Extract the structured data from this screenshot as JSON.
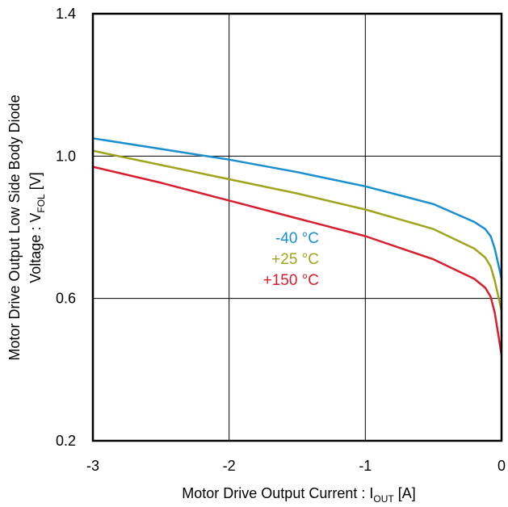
{
  "chart_data": {
    "type": "line",
    "xlabel": {
      "main": "Motor Drive Output Current : I",
      "sub": "OUT",
      "unit": " [A]"
    },
    "ylabel": {
      "line1": "Motor Drive Output Low Side Body Diode",
      "line2_main": "Voltage : V",
      "line2_sub": "FOL",
      "line2_unit": " [V]"
    },
    "xlim": [
      -3,
      0
    ],
    "ylim": [
      0.2,
      1.4
    ],
    "x_ticks": [
      {
        "value": -3,
        "label": "-3"
      },
      {
        "value": -2,
        "label": "-2"
      },
      {
        "value": -1,
        "label": "-1"
      },
      {
        "value": 0,
        "label": "0"
      }
    ],
    "y_ticks": [
      {
        "value": 0.2,
        "label": "0.2"
      },
      {
        "value": 0.6,
        "label": "0.6"
      },
      {
        "value": 1.0,
        "label": "1.0"
      },
      {
        "value": 1.4,
        "label": "1.4"
      }
    ],
    "grid": true,
    "series": [
      {
        "name": "-40 °C",
        "color": "#1a8fd0",
        "x": [
          -3.0,
          -2.5,
          -2.0,
          -1.5,
          -1.0,
          -0.5,
          -0.2,
          -0.12,
          -0.08,
          -0.05,
          -0.02,
          0.0
        ],
        "y": [
          1.05,
          1.02,
          0.99,
          0.955,
          0.915,
          0.865,
          0.815,
          0.795,
          0.775,
          0.74,
          0.69,
          0.655
        ]
      },
      {
        "name": "+25 °C",
        "color": "#9ea51b",
        "x": [
          -3.0,
          -2.5,
          -2.0,
          -1.5,
          -1.0,
          -0.5,
          -0.2,
          -0.12,
          -0.08,
          -0.05,
          -0.02,
          0.0
        ],
        "y": [
          1.015,
          0.975,
          0.935,
          0.895,
          0.85,
          0.795,
          0.74,
          0.715,
          0.69,
          0.65,
          0.6,
          0.565
        ]
      },
      {
        "name": "+150 °C",
        "color": "#d81e2e",
        "x": [
          -3.0,
          -2.5,
          -2.0,
          -1.5,
          -1.0,
          -0.5,
          -0.2,
          -0.12,
          -0.08,
          -0.05,
          -0.02,
          0.0
        ],
        "y": [
          0.97,
          0.925,
          0.875,
          0.825,
          0.775,
          0.71,
          0.655,
          0.63,
          0.605,
          0.56,
          0.49,
          0.44
        ]
      }
    ]
  }
}
